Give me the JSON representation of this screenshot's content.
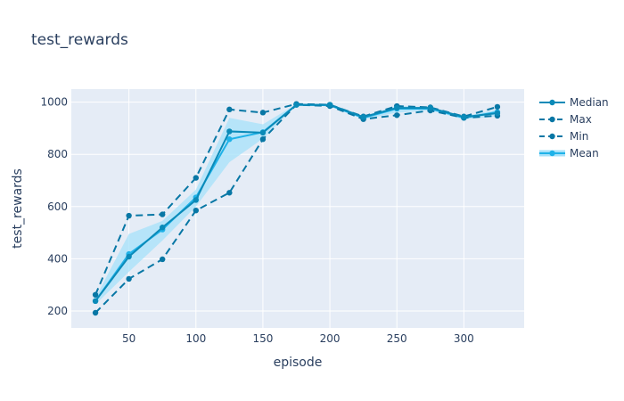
{
  "chart_data": {
    "type": "line",
    "title": "test_rewards",
    "xlabel": "episode",
    "ylabel": "test_rewards",
    "x": [
      25,
      50,
      75,
      100,
      125,
      150,
      175,
      200,
      225,
      250,
      275,
      300,
      325
    ],
    "xlim": [
      7,
      345
    ],
    "ylim": [
      135,
      1050
    ],
    "xticks": [
      50,
      100,
      150,
      200,
      250,
      300
    ],
    "yticks": [
      200,
      400,
      600,
      800,
      1000
    ],
    "grid": true,
    "legend_position": "top-right",
    "colors": {
      "median": "#0a8ab8",
      "stat": "#0877a5",
      "mean": "#1fb2e8",
      "band": "#a5e1fa",
      "plot_bg": "#e5ecf6",
      "grid": "#ffffff"
    },
    "series": [
      {
        "name": "Median",
        "key": "median",
        "dash": "solid",
        "values": [
          238,
          408,
          520,
          625,
          888,
          883,
          990,
          990,
          943,
          978,
          978,
          943,
          958
        ]
      },
      {
        "name": "Max",
        "key": "max",
        "dash": "dash",
        "values": [
          262,
          565,
          570,
          710,
          972,
          960,
          993,
          990,
          945,
          985,
          980,
          945,
          982
        ]
      },
      {
        "name": "Min",
        "key": "min",
        "dash": "dash",
        "values": [
          193,
          323,
          398,
          585,
          653,
          858,
          990,
          985,
          935,
          950,
          968,
          940,
          948
        ]
      },
      {
        "name": "Mean",
        "key": "mean",
        "dash": "solid",
        "values": [
          238,
          418,
          512,
          635,
          858,
          885,
          990,
          988,
          940,
          975,
          975,
          940,
          962
        ]
      }
    ],
    "mean_band": {
      "upper": [
        250,
        495,
        545,
        665,
        940,
        915,
        992,
        991,
        946,
        987,
        980,
        946,
        972
      ],
      "lower": [
        225,
        350,
        470,
        600,
        770,
        860,
        988,
        985,
        934,
        960,
        968,
        934,
        946
      ]
    }
  }
}
